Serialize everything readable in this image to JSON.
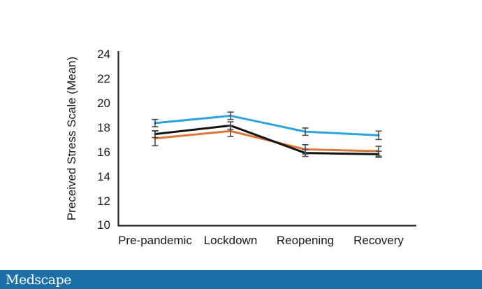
{
  "chart_data": {
    "type": "line",
    "title": "",
    "xlabel": "",
    "ylabel": "Preceived Stress Scale (Mean)",
    "categories": [
      "Pre-pandemic",
      "Lockdown",
      "Reopening",
      "Recovery"
    ],
    "yticks": [
      24,
      22,
      20,
      18,
      16,
      14,
      12,
      10
    ],
    "ylim": [
      10,
      24.3
    ],
    "grid": false,
    "legend": "none",
    "axis_color": "#262626",
    "error_bar_color": "#4a4a4a",
    "series": [
      {
        "name": "series-blue",
        "color": "#2BA3DC",
        "values": [
          18.4,
          19.0,
          17.7,
          17.4
        ],
        "errors": [
          0.3,
          0.3,
          0.3,
          0.35
        ]
      },
      {
        "name": "series-orange",
        "color": "#DC7639",
        "values": [
          17.15,
          17.75,
          16.25,
          16.1
        ],
        "errors": [
          0.6,
          0.45,
          0.38,
          0.4
        ]
      },
      {
        "name": "series-black",
        "color": "#121212",
        "values": [
          17.5,
          18.2,
          15.95,
          15.85
        ],
        "errors": [
          0.28,
          0.3,
          0.28,
          0.25
        ]
      }
    ]
  },
  "footer": {
    "brand": "Medscape",
    "bar_color": "#1A6FA4"
  }
}
